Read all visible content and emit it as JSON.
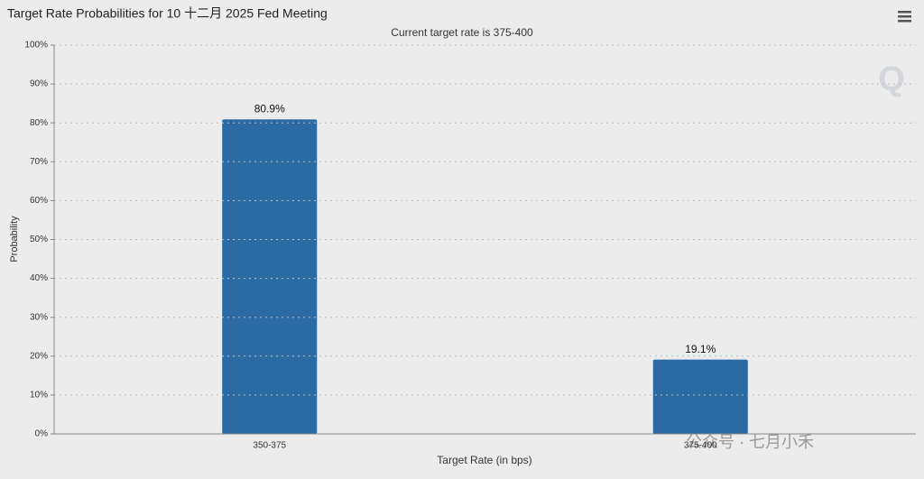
{
  "chart_data": {
    "type": "bar",
    "title": "Target Rate Probabilities for 10 十二月 2025 Fed Meeting",
    "subtitle": "Current target rate is 375-400",
    "x_label": "Target Rate (in bps)",
    "y_label": "Probability",
    "categories": [
      "350-375",
      "375-400"
    ],
    "values": [
      80.9,
      19.1
    ],
    "value_labels": [
      "80.9%",
      "19.1%"
    ],
    "color": "#2b6aa3",
    "ylim": [
      0,
      100
    ],
    "yticks": [
      {
        "value": 0,
        "label": "0%"
      },
      {
        "value": 10,
        "label": "10%"
      },
      {
        "value": 20,
        "label": "20%"
      },
      {
        "value": 30,
        "label": "30%"
      },
      {
        "value": 40,
        "label": "40%"
      },
      {
        "value": 50,
        "label": "50%"
      },
      {
        "value": 60,
        "label": "60%"
      },
      {
        "value": 70,
        "label": "70%"
      },
      {
        "value": 80,
        "label": "80%"
      },
      {
        "value": 90,
        "label": "90%"
      },
      {
        "value": 100,
        "label": "100%"
      }
    ],
    "grid": true,
    "watermark": "公众号 · 七月小禾"
  }
}
